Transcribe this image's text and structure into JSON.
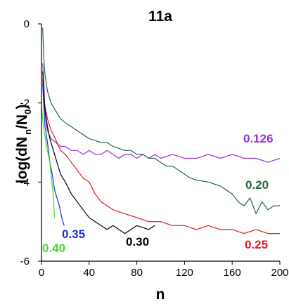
{
  "chart_data": {
    "type": "line",
    "title": "11a",
    "xlabel": "n",
    "ylabel": "log(dN n/N0)",
    "ylabel_parts": {
      "a": "log(dN",
      "sub1": "n",
      "b": "/N",
      "sub2": "0",
      "c": ")"
    },
    "xlim": [
      0,
      200
    ],
    "ylim": [
      -6,
      0
    ],
    "xticks": [
      "0",
      "40",
      "80",
      "120",
      "160",
      "200"
    ],
    "yticks": [
      "0",
      "-2",
      "-4",
      "-6"
    ],
    "grid": false,
    "legend": "none",
    "series": [
      {
        "name": "0.126",
        "color": "#9b2fd6",
        "x": [
          1,
          2,
          3,
          5,
          8,
          12,
          16,
          20,
          25,
          30,
          35,
          40,
          45,
          50,
          55,
          60,
          65,
          70,
          75,
          80,
          85,
          90,
          95,
          100,
          110,
          120,
          130,
          140,
          150,
          160,
          170,
          180,
          190,
          200
        ],
        "y": [
          -1.0,
          -1.5,
          -2.3,
          -2.7,
          -2.9,
          -3.0,
          -3.1,
          -3.1,
          -3.2,
          -3.2,
          -3.3,
          -3.2,
          -3.3,
          -3.3,
          -3.2,
          -3.3,
          -3.4,
          -3.3,
          -3.3,
          -3.4,
          -3.3,
          -3.4,
          -3.3,
          -3.4,
          -3.3,
          -3.4,
          -3.4,
          -3.3,
          -3.4,
          -3.3,
          -3.4,
          -3.4,
          -3.5,
          -3.4
        ]
      },
      {
        "name": "0.20",
        "color": "#1f6a3c",
        "x": [
          1,
          2,
          3,
          5,
          8,
          12,
          16,
          20,
          25,
          30,
          35,
          40,
          45,
          50,
          55,
          60,
          65,
          70,
          75,
          80,
          85,
          90,
          95,
          100,
          105,
          110,
          115,
          120,
          125,
          130,
          140,
          150,
          160,
          165,
          170,
          175,
          180,
          185,
          190,
          195,
          200
        ],
        "y": [
          -0.1,
          -0.9,
          -1.3,
          -1.7,
          -2.0,
          -2.2,
          -2.4,
          -2.5,
          -2.6,
          -2.7,
          -2.8,
          -2.9,
          -2.95,
          -3.0,
          -3.0,
          -3.1,
          -3.15,
          -3.2,
          -3.2,
          -3.3,
          -3.3,
          -3.4,
          -3.4,
          -3.5,
          -3.6,
          -3.6,
          -3.7,
          -3.8,
          -3.9,
          -3.95,
          -4.0,
          -4.1,
          -4.3,
          -4.5,
          -4.6,
          -4.4,
          -4.8,
          -4.5,
          -4.7,
          -4.6,
          -4.6
        ]
      },
      {
        "name": "0.25",
        "color": "#e01b24",
        "x": [
          1,
          2,
          3,
          5,
          8,
          10,
          13,
          16,
          20,
          25,
          30,
          35,
          40,
          45,
          50,
          55,
          60,
          70,
          80,
          90,
          100,
          110,
          120,
          130,
          140,
          150,
          160,
          170,
          180,
          190,
          200
        ],
        "y": [
          -1.4,
          -1.9,
          -2.1,
          -2.4,
          -2.7,
          -2.8,
          -3.0,
          -3.2,
          -3.3,
          -3.5,
          -3.7,
          -3.9,
          -4.0,
          -4.3,
          -4.5,
          -4.6,
          -4.7,
          -4.8,
          -4.9,
          -5.0,
          -5.0,
          -5.1,
          -5.1,
          -5.2,
          -5.1,
          -5.2,
          -5.2,
          -5.3,
          -5.2,
          -5.3,
          -5.3
        ]
      },
      {
        "name": "0.30",
        "color": "#000000",
        "x": [
          1,
          2,
          3,
          5,
          7,
          10,
          13,
          16,
          20,
          25,
          30,
          35,
          40,
          45,
          50,
          55,
          60,
          70,
          80,
          90,
          95
        ],
        "y": [
          -1.2,
          -1.8,
          -2.2,
          -2.6,
          -2.9,
          -3.2,
          -3.5,
          -3.8,
          -4.0,
          -4.3,
          -4.5,
          -4.7,
          -4.9,
          -5.0,
          -5.1,
          -5.2,
          -5.1,
          -5.3,
          -5.1,
          -5.2,
          -5.1
        ]
      },
      {
        "name": "0.35",
        "color": "#1c2fd6",
        "x": [
          1,
          2,
          3,
          5,
          7,
          9,
          11,
          13,
          15,
          17,
          19
        ],
        "y": [
          -1.5,
          -2.1,
          -2.6,
          -3.0,
          -3.5,
          -3.8,
          -4.2,
          -4.4,
          -4.6,
          -4.9,
          -5.1
        ]
      },
      {
        "name": "0.40",
        "color": "#3ddc2a",
        "x": [
          0,
          1,
          2,
          3,
          4,
          5,
          6,
          7,
          8,
          9,
          10,
          11
        ],
        "y": [
          -2.1,
          -2.4,
          -2.7,
          -2.85,
          -3.05,
          -3.2,
          -3.35,
          -3.5,
          -3.8,
          -4.1,
          -4.4,
          -4.9
        ]
      }
    ],
    "annotations": [
      {
        "text": "0.126",
        "color": "#9b2fd6"
      },
      {
        "text": "0.20",
        "color": "#1f6a3c"
      },
      {
        "text": "0.25",
        "color": "#e01b24"
      },
      {
        "text": "0.30",
        "color": "#000000"
      },
      {
        "text": "0.35",
        "color": "#1c2fd6"
      },
      {
        "text": "0.40",
        "color": "#3ddc2a"
      }
    ]
  }
}
